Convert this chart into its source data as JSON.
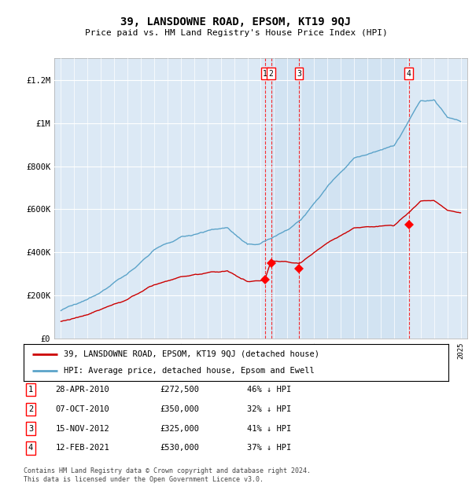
{
  "title": "39, LANSDOWNE ROAD, EPSOM, KT19 9QJ",
  "subtitle": "Price paid vs. HM Land Registry's House Price Index (HPI)",
  "footer1": "Contains HM Land Registry data © Crown copyright and database right 2024.",
  "footer2": "This data is licensed under the Open Government Licence v3.0.",
  "legend_red": "39, LANSDOWNE ROAD, EPSOM, KT19 9QJ (detached house)",
  "legend_blue": "HPI: Average price, detached house, Epsom and Ewell",
  "transactions": [
    {
      "num": 1,
      "date": "28-APR-2010",
      "price": "£272,500",
      "note": "46% ↓ HPI",
      "year": 2010.32,
      "price_val": 272500
    },
    {
      "num": 2,
      "date": "07-OCT-2010",
      "price": "£350,000",
      "note": "32% ↓ HPI",
      "year": 2010.77,
      "price_val": 350000
    },
    {
      "num": 3,
      "date": "15-NOV-2012",
      "price": "£325,000",
      "note": "41% ↓ HPI",
      "year": 2012.87,
      "price_val": 325000
    },
    {
      "num": 4,
      "date": "12-FEB-2021",
      "price": "£530,000",
      "note": "37% ↓ HPI",
      "year": 2021.12,
      "price_val": 530000
    }
  ],
  "hpi_color": "#5ba3c9",
  "price_color": "#cc0000",
  "background_color": "#dce9f5",
  "shade_color": "#cce0f0",
  "ylim": [
    0,
    1300000
  ],
  "xlim": [
    1994.5,
    2025.5
  ],
  "yticks": [
    0,
    200000,
    400000,
    600000,
    800000,
    1000000,
    1200000
  ],
  "ylabels": [
    "£0",
    "£200K",
    "£400K",
    "£600K",
    "£800K",
    "£1M",
    "£1.2M"
  ]
}
